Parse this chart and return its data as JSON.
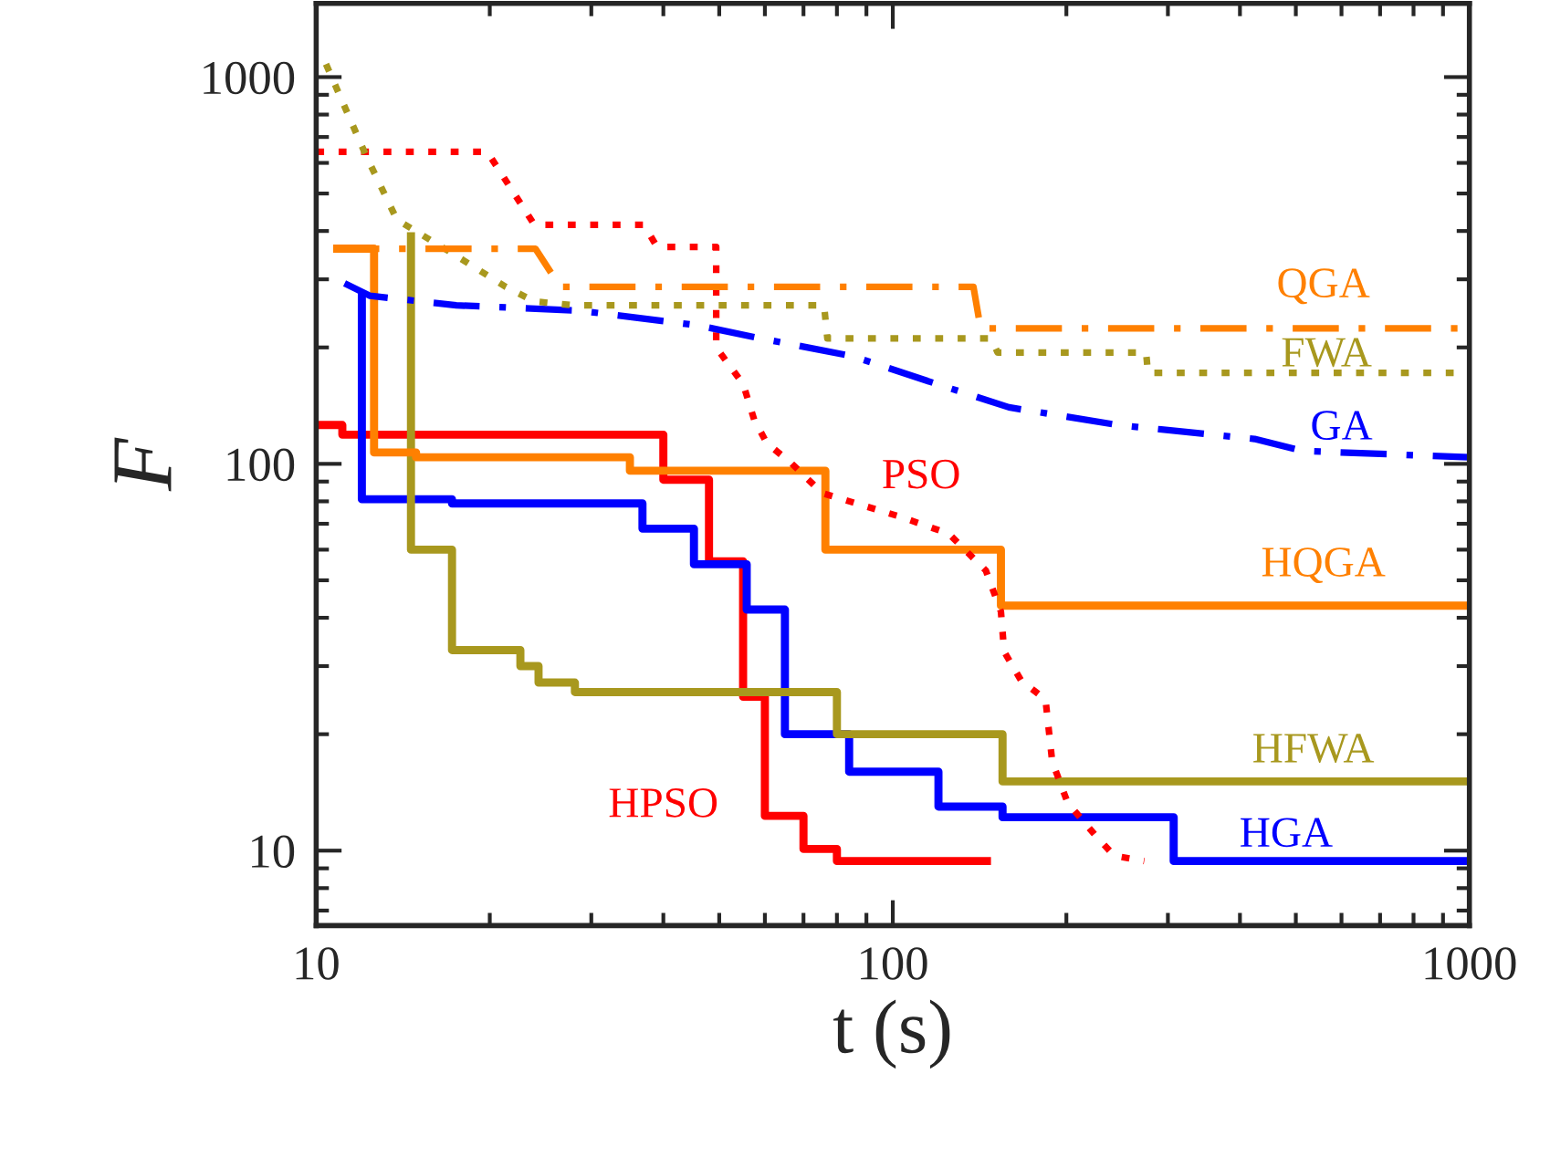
{
  "chart_data": {
    "type": "step",
    "xlabel": "t (s)",
    "ylabel": "F",
    "log": "xy",
    "xlim": [
      10,
      1000
    ],
    "ylim": [
      6.4,
      1550
    ],
    "xticks": [
      10,
      100,
      1000
    ],
    "yticks": [
      10,
      100,
      1000
    ],
    "grid": false,
    "legend": false,
    "series": [
      {
        "name": "HPSO",
        "color": "#ff0000",
        "line_style": "solid",
        "x": [
          10,
          11.1,
          40,
          48,
          55,
          60,
          70,
          80,
          148
        ],
        "values": [
          126,
          119,
          91,
          56,
          25,
          12.3,
          10.1,
          9.4,
          9.4
        ]
      },
      {
        "name": "HGA",
        "color": "#0000ff",
        "line_style": "solid",
        "x": [
          12,
          12,
          17.2,
          36.8,
          45.2,
          55.8,
          65,
          84,
          120,
          155,
          307,
          1000
        ],
        "values": [
          277,
          81,
          79,
          68,
          55,
          42,
          20,
          16,
          13,
          12.2,
          9.4,
          9.4
        ]
      },
      {
        "name": "HFWA",
        "color": "#a8981e",
        "line_style": "solid",
        "x": [
          14.6,
          14.6,
          17.2,
          22.6,
          24.3,
          28.1,
          80,
          155,
          1000
        ],
        "values": [
          397,
          60,
          33,
          30,
          27.2,
          25.7,
          20,
          15.1,
          15.1
        ]
      },
      {
        "name": "HQGA",
        "color": "#ff8000",
        "line_style": "solid",
        "x": [
          10.7,
          12.6,
          14.9,
          35,
          76.4,
          154,
          1000
        ],
        "values": [
          360,
          107,
          104,
          96,
          60,
          43,
          43
        ]
      },
      {
        "name": "PSO",
        "color": "#ff0000",
        "type": "line",
        "line_style": "dotted",
        "x": [
          10,
          19.8,
          23.9,
          37,
          39,
          49.4,
          49.4,
          55,
          57.5,
          60.5,
          66.4,
          75.5,
          103,
          125,
          145,
          154,
          156,
          167,
          184,
          189,
          201,
          224,
          242,
          273
        ],
        "values": [
          641,
          641,
          415,
          415,
          364,
          364,
          200,
          161,
          130,
          113,
          101,
          84,
          73,
          66,
          53,
          41.5,
          32.7,
          27.5,
          24.6,
          17,
          13.3,
          11,
          9.7,
          9.4
        ]
      },
      {
        "name": "GA",
        "color": "#0000ff",
        "type": "line",
        "line_style": "dashed",
        "x": [
          11.2,
          12.4,
          17.5,
          28.6,
          46,
          59,
          85,
          119,
          159,
          246,
          424,
          513,
          1000
        ],
        "values": [
          293,
          272,
          257,
          249,
          228,
          211,
          190,
          161,
          140,
          126,
          116,
          108,
          104
        ]
      },
      {
        "name": "FWA",
        "color": "#a8981e",
        "type": "line",
        "line_style": "dotted",
        "x": [
          10.4,
          12.2,
          13.8,
          17.5,
          21.3,
          23.9,
          28,
          76,
          77,
          148,
          152,
          275,
          277,
          1000
        ],
        "values": [
          1080,
          627,
          428,
          345,
          287,
          263,
          257,
          257,
          211,
          211,
          194,
          194,
          172,
          172
        ]
      },
      {
        "name": "QGA",
        "color": "#ff8000",
        "type": "line",
        "line_style": "dashed",
        "x": [
          10.7,
          24,
          26.5,
          138,
          142,
          1000
        ],
        "values": [
          360,
          360,
          287,
          287,
          224,
          224
        ]
      }
    ]
  }
}
